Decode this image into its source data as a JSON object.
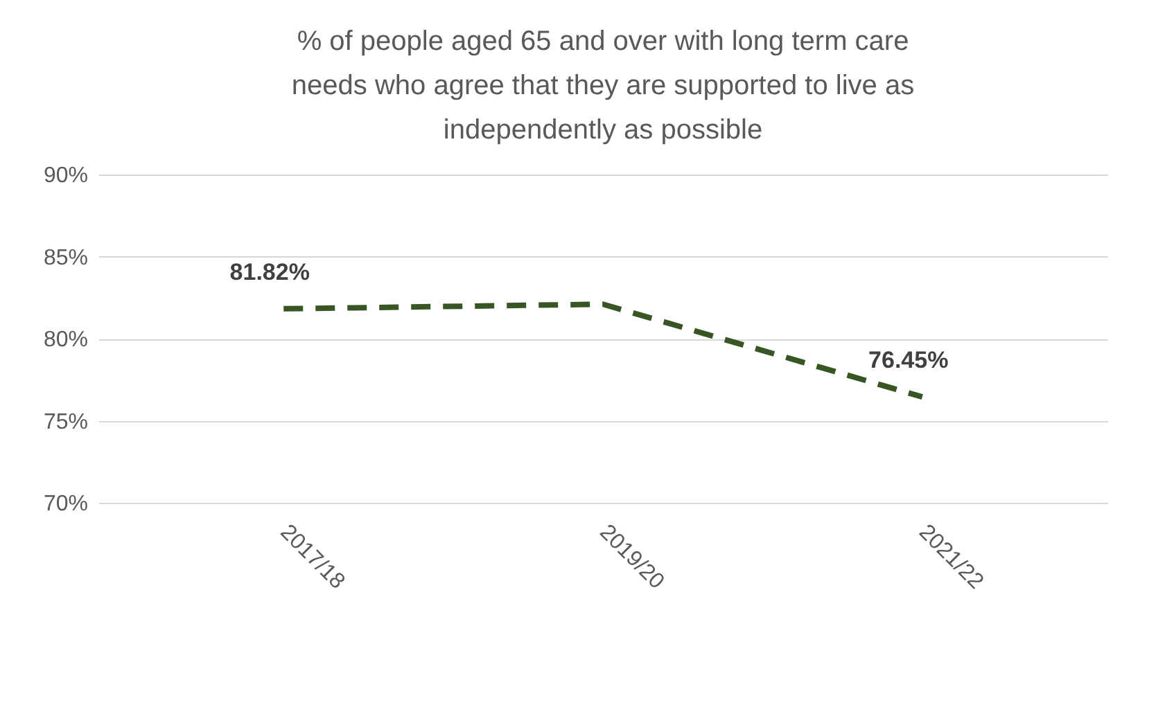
{
  "chart_data": {
    "type": "line",
    "title": "% of people aged 65 and over with long term care needs who agree that they are supported to live as independently as possible",
    "categories": [
      "2017/18",
      "2019/20",
      "2021/22"
    ],
    "series": [
      {
        "color": "#375623",
        "values": [
          81.82,
          82.1,
          76.45
        ],
        "value_labels": [
          "81.82%",
          null,
          "76.45%"
        ]
      }
    ],
    "ylim": [
      70,
      90
    ],
    "yticks": [
      {
        "value": 70,
        "label": "70%"
      },
      {
        "value": 75,
        "label": "75%"
      },
      {
        "value": 80,
        "label": "80%"
      },
      {
        "value": 85,
        "label": "85%"
      },
      {
        "value": 90,
        "label": "90%"
      }
    ],
    "grid": "y",
    "line_style": "dashed",
    "marker": "none"
  }
}
